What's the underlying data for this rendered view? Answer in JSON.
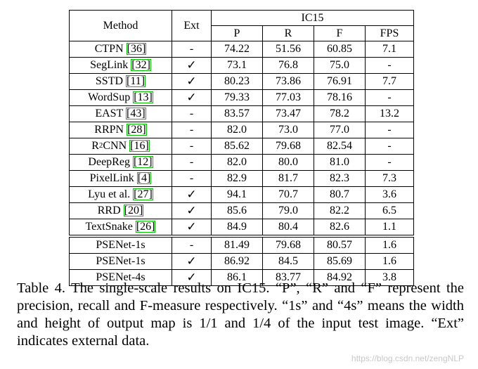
{
  "table": {
    "col_method": "Method",
    "col_ext": "Ext",
    "col_group": "IC15",
    "col_p": "P",
    "col_r": "R",
    "col_f": "F",
    "col_fps": "FPS",
    "rows": [
      {
        "method": "CTPN",
        "ref": "[36]",
        "ext": "-",
        "p": "74.22",
        "r": "51.56",
        "f": "60.85",
        "fps": "7.1"
      },
      {
        "method": "SegLink",
        "ref": "[32]",
        "ext": "✓",
        "p": "73.1",
        "r": "76.8",
        "f": "75.0",
        "fps": "-"
      },
      {
        "method": "SSTD",
        "ref": "[11]",
        "ext": "✓",
        "p": "80.23",
        "r": "73.86",
        "f": "76.91",
        "fps": "7.7"
      },
      {
        "method": "WordSup",
        "ref": "[13]",
        "ext": "✓",
        "p": "79.33",
        "r": "77.03",
        "f": "78.16",
        "fps": "-"
      },
      {
        "method": "EAST",
        "ref": "[43]",
        "ext": "-",
        "p": "83.57",
        "r": "73.47",
        "f": "78.2",
        "fps": "13.2"
      },
      {
        "method": "RRPN",
        "ref": "[28]",
        "ext": "-",
        "p": "82.0",
        "r": "73.0",
        "f": "77.0",
        "fps": "-"
      },
      {
        "method": "R",
        "sup": "2",
        "method_suffix": "CNN",
        "ref": "[16]",
        "ext": "-",
        "p": "85.62",
        "r": "79.68",
        "f": "82.54",
        "fps": "-"
      },
      {
        "method": "DeepReg",
        "ref": "[12]",
        "ext": "-",
        "p": "82.0",
        "r": "80.0",
        "f": "81.0",
        "fps": "-"
      },
      {
        "method": "PixelLink",
        "ref": "[4]",
        "ext": "-",
        "p": "82.9",
        "r": "81.7",
        "f": "82.3",
        "fps": "7.3"
      },
      {
        "method": "Lyu et al.",
        "ref": "[27]",
        "ext": "✓",
        "p": "94.1",
        "r": "70.7",
        "f": "80.7",
        "fps": "3.6"
      },
      {
        "method": "RRD",
        "ref": "[20]",
        "ext": "✓",
        "p": "85.6",
        "r": "79.0",
        "f": "82.2",
        "fps": "6.5"
      },
      {
        "method": "TextSnake",
        "ref": "[26]",
        "ext": "✓",
        "p": "84.9",
        "r": "80.4",
        "f": "82.6",
        "fps": "1.1"
      }
    ],
    "ours": [
      {
        "method": "PSENet-1s",
        "ext": "-",
        "p": "81.49",
        "r": "79.68",
        "f": "80.57",
        "fps": "1.6"
      },
      {
        "method": "PSENet-1s",
        "ext": "✓",
        "p": "86.92",
        "r": "84.5",
        "f": "85.69",
        "fps": "1.6"
      },
      {
        "method": "PSENet-4s",
        "ext": "✓",
        "p": "86.1",
        "r": "83.77",
        "f": "84.92",
        "fps": "3.8"
      }
    ]
  },
  "caption": "Table 4. The single-scale results on IC15. “P”, “R” and “F” represent the precision, recall and F-measure respectively. “1s” and “4s” means the width and height of output map is 1/1 and 1/4 of the input test image. “Ext” indicates external data.",
  "watermark": "https://blog.csdn.net/zengNLP"
}
